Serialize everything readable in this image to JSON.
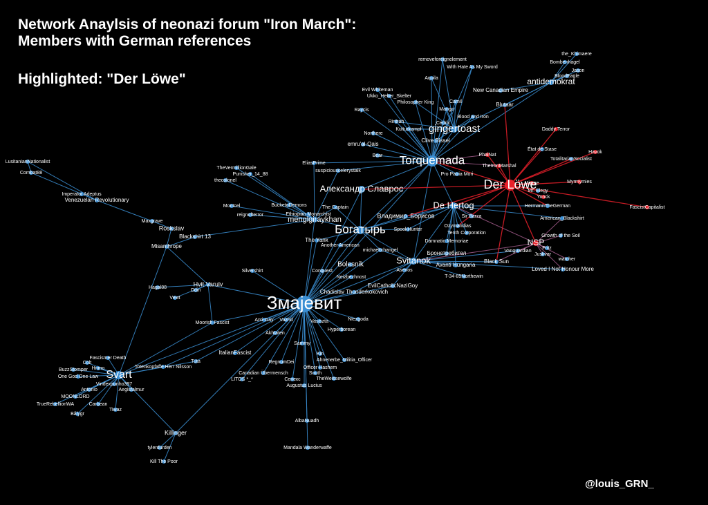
{
  "title": {
    "lines": [
      "Network Anaylsis of neonazi forum \"Iron March\":",
      "Members with German references"
    ],
    "highlight": "Highlighted: \"Der Löwe\""
  },
  "nodes": [
    "Змајевит",
    "Svart",
    "Torquemada",
    "Der Löwe",
    "Богатырь",
    "gingertoast",
    "Александр Славрос",
    "De Hertog",
    "Svitanok",
    "NSP",
    "antidemokrat",
    "menglgiraykhan",
    "Bolesnik",
    "Killinger",
    "Hvit Varulv",
    "Roskslav",
    "Misanthrope",
    "Blackshirt 13",
    "Venezuelan Revolutionary",
    "Imperator Adeptus",
    "LusitanianNationalist",
    "Combat88",
    "Maxgrave",
    "Hagal88",
    "Odin",
    "Vewt",
    "Moorish Fascist",
    "Silvershirt",
    "Conquest",
    "Another American",
    "The Yank",
    "michaeltchangel",
    "Neizbezhnost",
    "EvilCatholicNaziGoy",
    "Chadislav Thunderkokovich",
    "Anti-Gay",
    "Vazhd",
    "Vasiszta",
    "Niezgoda",
    "Hyperborean",
    "Akhtaten",
    "Sammy",
    "Kin",
    "Ahnenerbe_Militia_Officer",
    "Officer Hashem",
    "South",
    "TheWeissewolfe",
    "Сенекс",
    "Augustus Lucius",
    "Canadian Übermensch",
    "LITOS *_*",
    "RegnumDei",
    "ItalianFascist",
    "Tuta",
    "Totenkopfaffe Herr Nilsson",
    "AlbaNuadh",
    "Mandala Wanderwaffe",
    "tylerdurden",
    "Kill The Poor",
    "Fascismer Death",
    "Colt",
    "Hrimo",
    "BuzzStomper",
    "One God One Law",
    "Vindexpunho397",
    "Aegisfalmur",
    "Antonio",
    "MOONLORD",
    "Carbean",
    "TrueRebellionWA",
    "Tiwaz",
    "Bålygr",
    "TheVermillionGale",
    "Punisher_14_88",
    "thecolonel",
    "EliasPrime",
    "suspiciouscelerystalk",
    "Montcel",
    "BucketoDemons",
    "reignofterror",
    "Ethiopian Monarchist",
    "The Captain",
    "Evil Whiteman",
    "Ukko_Helter_Skelter",
    "Philosopher King",
    "Raycis",
    "Rintrah",
    "Kulturkampf",
    "Northere",
    "emru'al-Qais",
    "Bear",
    "Clive Bissel",
    "Pro Patria Mori",
    "TheIronMarshal",
    "PhalNat",
    "removeforeignelement",
    "With Hate As My Sword",
    "Aquila",
    "Camil",
    "Mango",
    "Blood and Iron",
    "Cedric",
    "New Canadian Empire",
    "Blutaar",
    "the_Khimaere",
    "Bombenhagel",
    "Jason",
    "BloodEagle",
    "Daddy Terror",
    "Havok",
    "État de Stase",
    "TotalitarianSocialist",
    "Myrmymies",
    "Mr. Elegy",
    "Mierce",
    "Yonck",
    "HermannTheGerman",
    "FascistCapitalist",
    "American_Blackshirt",
    "Growth of the Soil",
    "Fritz",
    "Juskvar",
    "watcher",
    "Loved I Not Honour More",
    "Vanguardian",
    "Black Sun",
    "Владимир_Борисов",
    "SpookHunter",
    "Sir Barza",
    "Ozymandias",
    "Tenth Corporation",
    "Damnatio Memoriae",
    "Бронетребител",
    "Avanti Hungaria",
    "Asenos",
    "T-34-85Northewin"
  ],
  "credit": "@louis_GRN_"
}
